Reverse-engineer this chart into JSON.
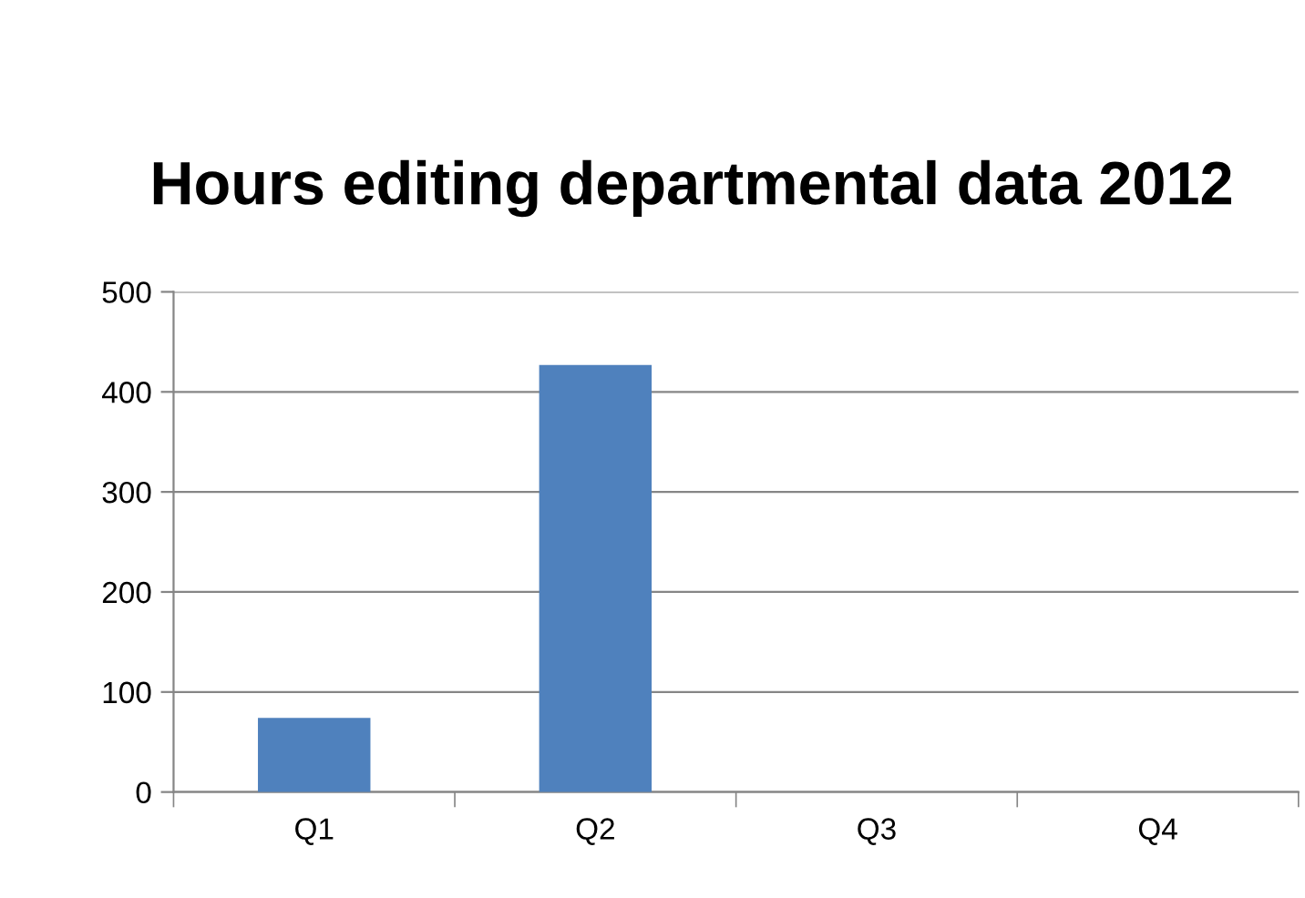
{
  "chart_data": {
    "type": "bar",
    "title": "Hours editing departmental data 2012",
    "categories": [
      "Q1",
      "Q2",
      "Q3",
      "Q4"
    ],
    "values": [
      74,
      427,
      null,
      null
    ],
    "color": "#4f81bd",
    "ylim": [
      0,
      500
    ],
    "yticks": [
      0,
      100,
      200,
      300,
      400,
      500
    ],
    "grid": "y",
    "legend": false
  }
}
